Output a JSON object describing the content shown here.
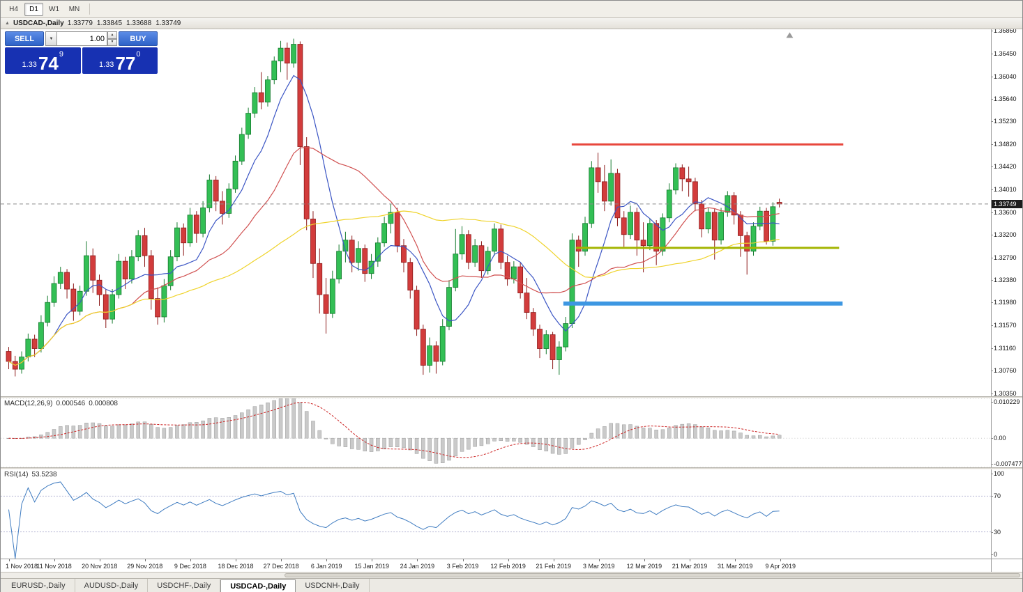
{
  "toolbar": {
    "timeframes": [
      {
        "label": "H4",
        "active": false
      },
      {
        "label": "D1",
        "active": true
      },
      {
        "label": "W1",
        "active": false
      },
      {
        "label": "MN",
        "active": false
      }
    ]
  },
  "chart_title": {
    "symbol": "USDCAD-,Daily",
    "open": "1.33779",
    "high": "1.33845",
    "low": "1.33688",
    "close": "1.33749"
  },
  "trade_panel": {
    "sell_label": "SELL",
    "buy_label": "BUY",
    "volume": "1.00",
    "sell_price": {
      "prefix": "1.33",
      "big": "74",
      "sup": "9"
    },
    "buy_price": {
      "prefix": "1.33",
      "big": "77",
      "sup": "0"
    }
  },
  "colors": {
    "candle_up": "#33bf55",
    "candle_up_border": "#157a2e",
    "candle_down": "#d23c3c",
    "candle_down_border": "#8d1a1a",
    "ma_fast": "#3b55c4",
    "ma_mid": "#d05050",
    "ma_slow": "#efd32a",
    "macd_hist": "#cacaca",
    "macd_hist_border": "#9b9b9b",
    "macd_signal": "#cc2222",
    "rsi_line": "#3f7cc1",
    "button_blue": "#2e62c8",
    "tile_blue": "#1731b2"
  },
  "chart_data": {
    "type": "candlestick",
    "symbol": "USDCAD",
    "timeframe": "Daily",
    "current_price": 1.33749,
    "price_axis": [
      "1.36860",
      "1.36450",
      "1.36040",
      "1.35640",
      "1.35230",
      "1.34820",
      "1.34420",
      "1.34010",
      "1.33600",
      "1.33200",
      "1.32790",
      "1.32380",
      "1.31980",
      "1.31570",
      "1.31160",
      "1.30760",
      "1.30350"
    ],
    "candles": [
      [
        1.311,
        1.3118,
        1.3078,
        1.3092
      ],
      [
        1.3092,
        1.3102,
        1.3065,
        1.3078
      ],
      [
        1.3078,
        1.311,
        1.307,
        1.31
      ],
      [
        1.31,
        1.3142,
        1.3092,
        1.3132
      ],
      [
        1.3132,
        1.314,
        1.31,
        1.3115
      ],
      [
        1.3115,
        1.3175,
        1.3108,
        1.3162
      ],
      [
        1.3162,
        1.321,
        1.3155,
        1.3198
      ],
      [
        1.3198,
        1.3245,
        1.319,
        1.3232
      ],
      [
        1.3232,
        1.3262,
        1.3222,
        1.3252
      ],
      [
        1.3252,
        1.3258,
        1.3205,
        1.3222
      ],
      [
        1.3222,
        1.3232,
        1.3165,
        1.3182
      ],
      [
        1.3182,
        1.3228,
        1.3175,
        1.3218
      ],
      [
        1.3218,
        1.3308,
        1.321,
        1.3282
      ],
      [
        1.3282,
        1.3295,
        1.3215,
        1.3238
      ],
      [
        1.3238,
        1.3248,
        1.3192,
        1.3212
      ],
      [
        1.3212,
        1.3222,
        1.3152,
        1.3168
      ],
      [
        1.3168,
        1.3222,
        1.316,
        1.3212
      ],
      [
        1.3212,
        1.3285,
        1.3205,
        1.3272
      ],
      [
        1.3272,
        1.328,
        1.3222,
        1.324
      ],
      [
        1.324,
        1.3292,
        1.3232,
        1.328
      ],
      [
        1.328,
        1.3328,
        1.3272,
        1.3318
      ],
      [
        1.3318,
        1.3332,
        1.3262,
        1.3282
      ],
      [
        1.3282,
        1.3292,
        1.3185,
        1.3205
      ],
      [
        1.3205,
        1.3225,
        1.3158,
        1.3172
      ],
      [
        1.3172,
        1.324,
        1.3162,
        1.3228
      ],
      [
        1.3228,
        1.3292,
        1.322,
        1.328
      ],
      [
        1.328,
        1.3342,
        1.3272,
        1.3332
      ],
      [
        1.3332,
        1.334,
        1.3282,
        1.3305
      ],
      [
        1.3305,
        1.3368,
        1.3298,
        1.3355
      ],
      [
        1.3355,
        1.3362,
        1.3305,
        1.3322
      ],
      [
        1.3322,
        1.338,
        1.3315,
        1.3368
      ],
      [
        1.3368,
        1.3428,
        1.336,
        1.3418
      ],
      [
        1.3418,
        1.3425,
        1.3362,
        1.338
      ],
      [
        1.338,
        1.3398,
        1.3338,
        1.3358
      ],
      [
        1.3358,
        1.3412,
        1.335,
        1.3402
      ],
      [
        1.3402,
        1.3462,
        1.3395,
        1.3452
      ],
      [
        1.3452,
        1.3512,
        1.3445,
        1.35
      ],
      [
        1.35,
        1.3548,
        1.3492,
        1.3538
      ],
      [
        1.3538,
        1.3585,
        1.353,
        1.3575
      ],
      [
        1.3575,
        1.3612,
        1.3545,
        1.3558
      ],
      [
        1.3558,
        1.3605,
        1.355,
        1.3598
      ],
      [
        1.3598,
        1.364,
        1.359,
        1.3632
      ],
      [
        1.3632,
        1.3668,
        1.3612,
        1.3655
      ],
      [
        1.3655,
        1.3665,
        1.3598,
        1.3628
      ],
      [
        1.3628,
        1.3672,
        1.362,
        1.3662
      ],
      [
        1.3662,
        1.3667,
        1.3445,
        1.3478
      ],
      [
        1.3478,
        1.3495,
        1.3328,
        1.3348
      ],
      [
        1.3348,
        1.3362,
        1.3242,
        1.3268
      ],
      [
        1.3268,
        1.3295,
        1.3178,
        1.3212
      ],
      [
        1.3212,
        1.3242,
        1.3142,
        1.3178
      ],
      [
        1.3178,
        1.3255,
        1.317,
        1.324
      ],
      [
        1.324,
        1.3302,
        1.3232,
        1.329
      ],
      [
        1.329,
        1.3325,
        1.327,
        1.331
      ],
      [
        1.331,
        1.3318,
        1.3252,
        1.327
      ],
      [
        1.327,
        1.3308,
        1.3255,
        1.3295
      ],
      [
        1.3295,
        1.3302,
        1.3235,
        1.325
      ],
      [
        1.325,
        1.3285,
        1.324,
        1.3272
      ],
      [
        1.3272,
        1.3315,
        1.3262,
        1.3305
      ],
      [
        1.3305,
        1.3352,
        1.3298,
        1.334
      ],
      [
        1.334,
        1.3375,
        1.3322,
        1.336
      ],
      [
        1.336,
        1.3368,
        1.3288,
        1.33
      ],
      [
        1.33,
        1.3312,
        1.3252,
        1.327
      ],
      [
        1.327,
        1.3278,
        1.3205,
        1.322
      ],
      [
        1.322,
        1.3228,
        1.3138,
        1.315
      ],
      [
        1.315,
        1.3158,
        1.3068,
        1.3085
      ],
      [
        1.3085,
        1.3135,
        1.3072,
        1.312
      ],
      [
        1.312,
        1.3128,
        1.307,
        1.3092
      ],
      [
        1.3092,
        1.3168,
        1.3085,
        1.3155
      ],
      [
        1.3155,
        1.3238,
        1.3148,
        1.3225
      ],
      [
        1.3225,
        1.333,
        1.3218,
        1.3285
      ],
      [
        1.3285,
        1.3335,
        1.3275,
        1.332
      ],
      [
        1.332,
        1.3328,
        1.3258,
        1.327
      ],
      [
        1.327,
        1.3312,
        1.3262,
        1.33
      ],
      [
        1.33,
        1.3308,
        1.3242,
        1.3255
      ],
      [
        1.3255,
        1.3298,
        1.3248,
        1.329
      ],
      [
        1.329,
        1.334,
        1.3282,
        1.333
      ],
      [
        1.333,
        1.3338,
        1.3258,
        1.327
      ],
      [
        1.327,
        1.3282,
        1.3228,
        1.324
      ],
      [
        1.324,
        1.3272,
        1.3232,
        1.3262
      ],
      [
        1.3262,
        1.327,
        1.3205,
        1.3215
      ],
      [
        1.3215,
        1.3242,
        1.3168,
        1.318
      ],
      [
        1.318,
        1.3188,
        1.3138,
        1.315
      ],
      [
        1.315,
        1.3158,
        1.3098,
        1.3115
      ],
      [
        1.3115,
        1.3148,
        1.3105,
        1.314
      ],
      [
        1.314,
        1.3145,
        1.3078,
        1.3095
      ],
      [
        1.3095,
        1.3128,
        1.3068,
        1.3118
      ],
      [
        1.3118,
        1.3172,
        1.311,
        1.316
      ],
      [
        1.316,
        1.3322,
        1.3152,
        1.331
      ],
      [
        1.331,
        1.3318,
        1.3262,
        1.329
      ],
      [
        1.329,
        1.3352,
        1.3282,
        1.334
      ],
      [
        1.334,
        1.3452,
        1.3332,
        1.344
      ],
      [
        1.344,
        1.3467,
        1.3395,
        1.3415
      ],
      [
        1.3415,
        1.3445,
        1.3362,
        1.338
      ],
      [
        1.338,
        1.3455,
        1.3372,
        1.343
      ],
      [
        1.343,
        1.3438,
        1.3335,
        1.335
      ],
      [
        1.335,
        1.3362,
        1.3298,
        1.332
      ],
      [
        1.332,
        1.3372,
        1.3312,
        1.336
      ],
      [
        1.336,
        1.3368,
        1.3282,
        1.331
      ],
      [
        1.331,
        1.3342,
        1.3252,
        1.33
      ],
      [
        1.33,
        1.3348,
        1.3292,
        1.334
      ],
      [
        1.334,
        1.3346,
        1.3265,
        1.329
      ],
      [
        1.329,
        1.3358,
        1.3282,
        1.335
      ],
      [
        1.335,
        1.3412,
        1.3342,
        1.34
      ],
      [
        1.34,
        1.3448,
        1.3392,
        1.344
      ],
      [
        1.344,
        1.3446,
        1.3398,
        1.342
      ],
      [
        1.342,
        1.3442,
        1.3388,
        1.3415
      ],
      [
        1.3415,
        1.3422,
        1.3362,
        1.3375
      ],
      [
        1.3375,
        1.3382,
        1.3315,
        1.333
      ],
      [
        1.333,
        1.3368,
        1.3322,
        1.336
      ],
      [
        1.336,
        1.3366,
        1.3275,
        1.331
      ],
      [
        1.331,
        1.3368,
        1.3302,
        1.336
      ],
      [
        1.336,
        1.3398,
        1.3352,
        1.339
      ],
      [
        1.339,
        1.3396,
        1.3338,
        1.3355
      ],
      [
        1.3355,
        1.3362,
        1.328,
        1.3318
      ],
      [
        1.3318,
        1.3325,
        1.3248,
        1.329
      ],
      [
        1.329,
        1.3342,
        1.3282,
        1.3335
      ],
      [
        1.3335,
        1.337,
        1.3328,
        1.3362
      ],
      [
        1.3362,
        1.3368,
        1.3302,
        1.3308
      ],
      [
        1.3308,
        1.3378,
        1.33,
        1.337
      ],
      [
        1.33779,
        1.33845,
        1.33688,
        1.33749
      ]
    ],
    "moving_averages": [
      {
        "period": 8,
        "color": "#3b55c4"
      },
      {
        "period": 20,
        "color": "#d05050"
      },
      {
        "period": 45,
        "color": "#efd32a"
      }
    ],
    "hlines": [
      {
        "name": "resistance-line-red",
        "price": 1.3482,
        "color": "#e8473d",
        "width": 3,
        "from_bar": 87.3,
        "to_bar": 129.3
      },
      {
        "name": "support-line-olive",
        "price": 1.3296,
        "color": "#a3b400",
        "width": 3,
        "from_bar": 88.0,
        "to_bar": 128.6
      },
      {
        "name": "support-line-blue",
        "price": 1.3196,
        "color": "#3d97e2",
        "width": 6,
        "from_bar": 86.0,
        "to_bar": 129.1
      }
    ],
    "date_labels": [
      {
        "bar": 0,
        "label": "1 Nov 2018"
      },
      {
        "bar": 7,
        "label": "11 Nov 2018"
      },
      {
        "bar": 14,
        "label": "20 Nov 2018"
      },
      {
        "bar": 21,
        "label": "29 Nov 2018"
      },
      {
        "bar": 28,
        "label": "9 Dec 2018"
      },
      {
        "bar": 35,
        "label": "18 Dec 2018"
      },
      {
        "bar": 42,
        "label": "27 Dec 2018"
      },
      {
        "bar": 49,
        "label": "6 Jan 2019"
      },
      {
        "bar": 56,
        "label": "15 Jan 2019"
      },
      {
        "bar": 63,
        "label": "24 Jan 2019"
      },
      {
        "bar": 70,
        "label": "3 Feb 2019"
      },
      {
        "bar": 77,
        "label": "12 Feb 2019"
      },
      {
        "bar": 84,
        "label": "21 Feb 2019"
      },
      {
        "bar": 91,
        "label": "3 Mar 2019"
      },
      {
        "bar": 98,
        "label": "12 Mar 2019"
      },
      {
        "bar": 105,
        "label": "21 Mar 2019"
      },
      {
        "bar": 112,
        "label": "31 Mar 2019"
      },
      {
        "bar": 119,
        "label": "9 Apr 2019"
      }
    ],
    "macd": {
      "label": "MACD(12,26,9)",
      "value_macd": "0.000546",
      "value_signal": "0.000808",
      "params": {
        "fast": 12,
        "slow": 26,
        "signal": 9
      },
      "axis": [
        {
          "label": "0.010229",
          "value": 0.010229
        },
        {
          "label": "0.00",
          "value": 0
        },
        {
          "label": "-0.007477",
          "value": -0.007477
        }
      ]
    },
    "rsi": {
      "label": "RSI(14)",
      "value": "53.5238",
      "period": 14,
      "levels": [
        70,
        30
      ],
      "axis": [
        {
          "label": "100",
          "value": 100
        },
        {
          "label": "70",
          "value": 70
        },
        {
          "label": "30",
          "value": 30
        },
        {
          "label": "0",
          "value": 0
        }
      ]
    }
  },
  "bottom_tabs": [
    {
      "label": "EURUSD-,Daily",
      "active": false
    },
    {
      "label": "AUDUSD-,Daily",
      "active": false
    },
    {
      "label": "USDCHF-,Daily",
      "active": false
    },
    {
      "label": "USDCAD-,Daily",
      "active": true
    },
    {
      "label": "USDCNH-,Daily",
      "active": false
    }
  ]
}
